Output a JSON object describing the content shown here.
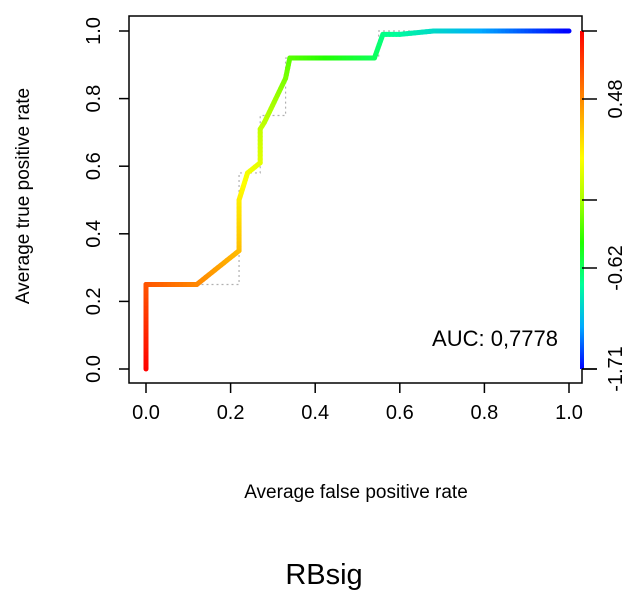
{
  "chart_data": {
    "type": "line",
    "title": "RBsig",
    "xlabel": "Average false positive rate",
    "ylabel": "Average true positive rate",
    "xlim": [
      0,
      1
    ],
    "ylim": [
      0,
      1
    ],
    "x_ticks": [
      "0.0",
      "0.2",
      "0.4",
      "0.6",
      "0.8",
      "1.0"
    ],
    "y_ticks": [
      "0.0",
      "0.2",
      "0.4",
      "0.6",
      "0.8",
      "1.0"
    ],
    "annotation": "AUC: 0,7778",
    "colorbar": {
      "ticks": [
        "-1.71",
        "-0.62",
        "0.48"
      ],
      "colors": [
        "#0000ff",
        "#00aaff",
        "#00ff99",
        "#22ff00",
        "#aaff00",
        "#ffff00",
        "#ffaa00",
        "#ff5500",
        "#ff0000"
      ]
    },
    "roc_curve": {
      "x": [
        0.0,
        0.0,
        0.0,
        0.12,
        0.22,
        0.22,
        0.24,
        0.27,
        0.27,
        0.28,
        0.33,
        0.34,
        0.45,
        0.54,
        0.56,
        0.6,
        0.68,
        0.8,
        1.0
      ],
      "y": [
        0.0,
        0.25,
        0.25,
        0.25,
        0.35,
        0.5,
        0.58,
        0.61,
        0.71,
        0.73,
        0.86,
        0.92,
        0.92,
        0.92,
        0.99,
        0.99,
        1.0,
        1.0,
        1.0
      ]
    },
    "reference_steps": {
      "x": [
        0.0,
        0.0,
        0.22,
        0.22,
        0.27,
        0.27,
        0.33,
        0.33,
        0.55,
        0.55,
        1.0
      ],
      "y": [
        0.0,
        0.25,
        0.25,
        0.58,
        0.58,
        0.75,
        0.75,
        0.92,
        0.92,
        1.0,
        1.0
      ]
    },
    "grid": false,
    "legend": "none"
  }
}
